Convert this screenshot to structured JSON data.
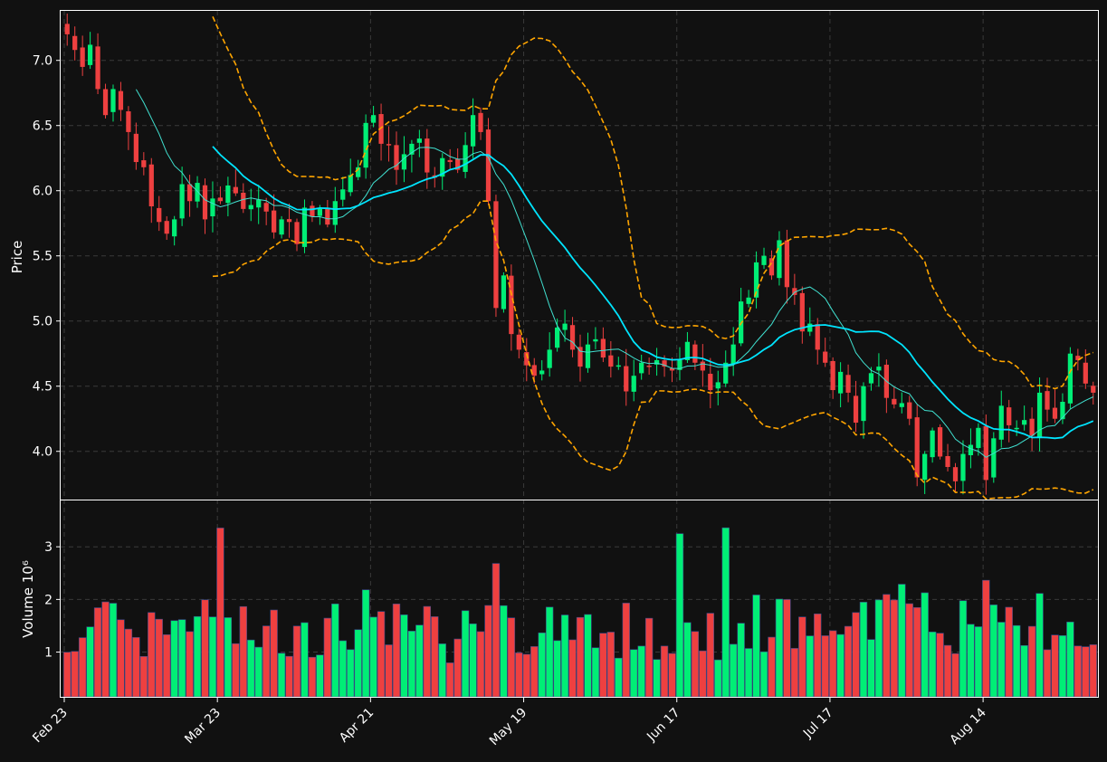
{
  "chart_data": {
    "type": "candlestick",
    "title": "",
    "price_panel": {
      "ylabel": "Price",
      "ylim": [
        3.63,
        7.38
      ],
      "yticks": [
        4.0,
        4.5,
        5.0,
        5.5,
        6.0,
        6.5,
        7.0
      ],
      "ytick_labels": [
        "4.0",
        "4.5",
        "5.0",
        "5.5",
        "6.0",
        "6.5",
        "7.0"
      ],
      "series": [
        {
          "name": "",
          "kind": "moving-average-short",
          "color": "#40e0d0"
        },
        {
          "name": "",
          "kind": "moving-average-long",
          "color": "#00e5ff"
        },
        {
          "name": "",
          "kind": "bollinger-bands",
          "color": "#ffa500"
        }
      ]
    },
    "volume_panel": {
      "ylabel": "Volume  10⁶",
      "ylim": [
        0.15,
        3.88
      ],
      "yticks": [
        1,
        2,
        3
      ],
      "ytick_labels": [
        "1",
        "2",
        "3"
      ]
    },
    "x_ticks": [
      {
        "label": "Feb 23",
        "index": 0
      },
      {
        "label": "Mar 23",
        "index": 20
      },
      {
        "label": "Apr 21",
        "index": 40
      },
      {
        "label": "May 19",
        "index": 60
      },
      {
        "label": "Jun 17",
        "index": 80
      },
      {
        "label": "Jul 17",
        "index": 100
      },
      {
        "label": "Aug 14",
        "index": 120
      }
    ],
    "colors": {
      "up": "#00ee76",
      "down": "#ee4040",
      "background": "#111111",
      "grid": "#3a3a3a",
      "text": "#ffffff",
      "ma_short": "#40e0d0",
      "ma_long": "#00e5ff",
      "bands": "#ffa500"
    },
    "closes": [
      7.2,
      7.08,
      6.95,
      7.12,
      6.78,
      6.58,
      6.78,
      6.62,
      6.45,
      6.22,
      6.18,
      5.88,
      5.76,
      5.67,
      5.78,
      6.05,
      5.92,
      6.06,
      5.78,
      5.94,
      5.92,
      6.04,
      5.98,
      5.86,
      5.89,
      5.93,
      5.84,
      5.68,
      5.78,
      5.76,
      5.59,
      5.87,
      5.8,
      5.86,
      5.74,
      5.92,
      6.01,
      6.12,
      6.18,
      6.52,
      6.58,
      6.36,
      6.35,
      6.16,
      6.28,
      6.36,
      6.4,
      6.14,
      6.1,
      6.25,
      6.22,
      6.16,
      6.35,
      6.58,
      6.45,
      5.92,
      5.1,
      5.35,
      4.9,
      4.78,
      4.66,
      4.58,
      4.62,
      4.78,
      4.95,
      4.98,
      4.78,
      4.65,
      4.82,
      4.86,
      4.72,
      4.65,
      4.66,
      4.46,
      4.58,
      4.68,
      4.65,
      4.7,
      4.65,
      4.62,
      4.7,
      4.84,
      4.68,
      4.62,
      4.47,
      4.53,
      4.68,
      4.82,
      5.15,
      5.18,
      5.45,
      5.5,
      5.35,
      5.62,
      5.26,
      5.2,
      4.92,
      4.98,
      4.78,
      4.68,
      4.47,
      4.61,
      4.45,
      4.22,
      4.5,
      4.6,
      4.65,
      4.41,
      4.36,
      4.37,
      4.25,
      3.8,
      3.98,
      4.16,
      3.96,
      3.88,
      3.77,
      3.98,
      4.05,
      4.18,
      3.78,
      4.1,
      4.35,
      4.2,
      4.18,
      4.24,
      4.12,
      4.45,
      4.32,
      4.25,
      4.38,
      4.75,
      4.7,
      4.52,
      4.45
    ]
  }
}
